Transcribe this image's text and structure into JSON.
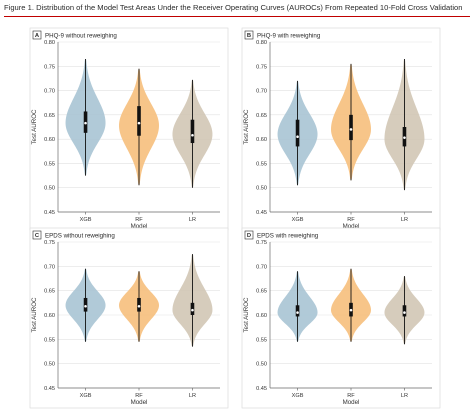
{
  "figure": {
    "title": "Figure 1. Distribution of the Model Test Areas Under the Receiver Operating Curves (AUROCs) From Repeated 10-Fold Cross Validation",
    "rule_color": "#c00000"
  },
  "colors": {
    "XGB": "#a9c4d4",
    "RF": "#f6bf7c",
    "LR": "#d2c7b5",
    "box": "#111111",
    "median_dot": "#ffffff"
  },
  "chart_data": [
    {
      "type": "violin",
      "letter": "A",
      "title": "PHQ-9 without reweighing",
      "xlabel": "Model",
      "ylabel": "Test AUROC",
      "ylim": [
        0.45,
        0.8
      ],
      "yticks": [
        "0.45",
        "0.50",
        "0.55",
        "0.60",
        "0.65",
        "0.70",
        "0.75",
        "0.80"
      ],
      "grid": true,
      "categories": [
        "XGB",
        "RF",
        "LR"
      ],
      "series": [
        {
          "min": 0.525,
          "q1": 0.613,
          "median": 0.633,
          "q3": 0.657,
          "max": 0.765,
          "mode": 0.633
        },
        {
          "min": 0.505,
          "q1": 0.607,
          "median": 0.633,
          "q3": 0.668,
          "max": 0.745,
          "mode": 0.628
        },
        {
          "min": 0.5,
          "q1": 0.592,
          "median": 0.608,
          "q3": 0.64,
          "max": 0.722,
          "mode": 0.61
        }
      ]
    },
    {
      "type": "violin",
      "letter": "B",
      "title": "PHQ-9 with reweighing",
      "xlabel": "Model",
      "ylabel": "Test AUROC",
      "ylim": [
        0.45,
        0.8
      ],
      "yticks": [
        "0.45",
        "0.50",
        "0.55",
        "0.60",
        "0.65",
        "0.70",
        "0.75",
        "0.80"
      ],
      "grid": true,
      "categories": [
        "XGB",
        "RF",
        "LR"
      ],
      "series": [
        {
          "min": 0.505,
          "q1": 0.585,
          "median": 0.605,
          "q3": 0.64,
          "max": 0.72,
          "mode": 0.61
        },
        {
          "min": 0.515,
          "q1": 0.598,
          "median": 0.62,
          "q3": 0.65,
          "max": 0.755,
          "mode": 0.62
        },
        {
          "min": 0.495,
          "q1": 0.585,
          "median": 0.603,
          "q3": 0.625,
          "max": 0.765,
          "mode": 0.6
        }
      ]
    },
    {
      "type": "violin",
      "letter": "C",
      "title": "EPDS without reweighing",
      "xlabel": "Model",
      "ylabel": "Test AUROC",
      "ylim": [
        0.45,
        0.75
      ],
      "yticks": [
        "0.45",
        "0.50",
        "0.55",
        "0.60",
        "0.65",
        "0.70",
        "0.75"
      ],
      "grid": true,
      "categories": [
        "XGB",
        "RF",
        "LR"
      ],
      "series": [
        {
          "min": 0.545,
          "q1": 0.607,
          "median": 0.618,
          "q3": 0.635,
          "max": 0.695,
          "mode": 0.62
        },
        {
          "min": 0.545,
          "q1": 0.607,
          "median": 0.618,
          "q3": 0.635,
          "max": 0.69,
          "mode": 0.62
        },
        {
          "min": 0.535,
          "q1": 0.6,
          "median": 0.61,
          "q3": 0.625,
          "max": 0.725,
          "mode": 0.61
        }
      ]
    },
    {
      "type": "violin",
      "letter": "D",
      "title": "EPDS with reweighing",
      "xlabel": "Model",
      "ylabel": "Test AUROC",
      "ylim": [
        0.45,
        0.75
      ],
      "yticks": [
        "0.45",
        "0.50",
        "0.55",
        "0.60",
        "0.65",
        "0.70",
        "0.75"
      ],
      "grid": true,
      "categories": [
        "XGB",
        "RF",
        "LR"
      ],
      "series": [
        {
          "min": 0.545,
          "q1": 0.597,
          "median": 0.605,
          "q3": 0.62,
          "max": 0.69,
          "mode": 0.605
        },
        {
          "min": 0.545,
          "q1": 0.597,
          "median": 0.61,
          "q3": 0.625,
          "max": 0.695,
          "mode": 0.61
        },
        {
          "min": 0.54,
          "q1": 0.597,
          "median": 0.605,
          "q3": 0.62,
          "max": 0.68,
          "mode": 0.605
        }
      ]
    }
  ]
}
